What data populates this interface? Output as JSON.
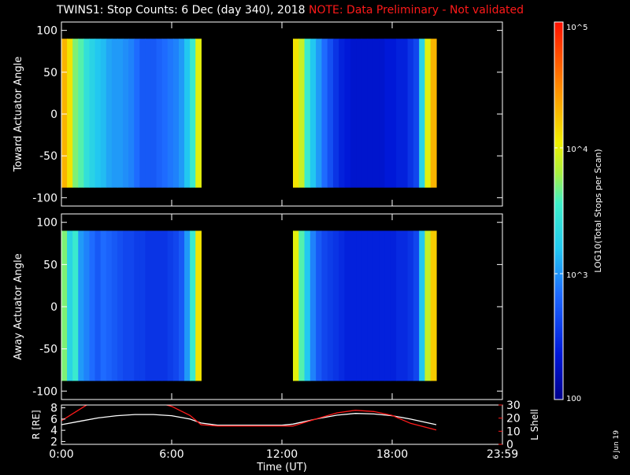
{
  "header": {
    "title": "TWINS1: Stop Counts:  6 Dec (day 340), 2018",
    "note": "NOTE: Data Preliminary - Not validated"
  },
  "footer": {
    "date_stamp": "6 Jun 19"
  },
  "colors": {
    "background": "#000000",
    "axes": "#ffffff",
    "lshell": "#ff1a1a"
  },
  "chart_data": [
    {
      "type": "heatmap",
      "ylabel": "Toward Actuator Angle",
      "ylim": [
        -110,
        110
      ],
      "yticks": [
        100,
        50,
        0,
        -50,
        -100
      ],
      "x_unit": "hours UT",
      "xlim": [
        0,
        24
      ],
      "color_scale": "log10",
      "colorbar_range": [
        100,
        100000
      ],
      "segments": [
        {
          "x": [
            0.0,
            7.6
          ],
          "y": [
            -88,
            90
          ],
          "profile": [
            4.3,
            4.1,
            3.7,
            3.6,
            3.4,
            3.3,
            3.2,
            3.15,
            3.05,
            3.0,
            3.0,
            2.95,
            2.9,
            2.8,
            2.7,
            2.7,
            2.7,
            2.75,
            2.8,
            2.85,
            2.9,
            3.0,
            3.2,
            3.5,
            4.0
          ]
        },
        {
          "x": [
            12.6,
            20.4
          ],
          "y": [
            -88,
            90
          ],
          "profile": [
            4.1,
            3.9,
            3.5,
            3.2,
            3.0,
            2.8,
            2.65,
            2.5,
            2.4,
            2.35,
            2.3,
            2.3,
            2.3,
            2.3,
            2.3,
            2.3,
            2.35,
            2.35,
            2.4,
            2.4,
            2.5,
            2.6,
            3.3,
            4.0,
            4.3
          ]
        }
      ]
    },
    {
      "type": "heatmap",
      "ylabel": "Away Actuator Angle",
      "ylim": [
        -110,
        110
      ],
      "yticks": [
        100,
        50,
        0,
        -50,
        -100
      ],
      "x_unit": "hours UT",
      "xlim": [
        0,
        24
      ],
      "color_scale": "log10",
      "colorbar_range": [
        100,
        100000
      ],
      "segments": [
        {
          "x": [
            0.0,
            7.6
          ],
          "y": [
            -88,
            90
          ],
          "profile": [
            3.7,
            3.3,
            3.5,
            3.0,
            2.9,
            2.8,
            2.7,
            2.8,
            2.75,
            2.7,
            2.65,
            2.6,
            2.6,
            2.55,
            2.55,
            2.5,
            2.5,
            2.5,
            2.5,
            2.55,
            2.6,
            2.7,
            3.0,
            3.5,
            4.1
          ]
        },
        {
          "x": [
            12.6,
            20.4
          ],
          "y": [
            -88,
            90
          ],
          "profile": [
            4.0,
            3.6,
            3.2,
            2.9,
            2.7,
            2.6,
            2.55,
            2.5,
            2.45,
            2.4,
            2.4,
            2.4,
            2.4,
            2.4,
            2.4,
            2.4,
            2.4,
            2.4,
            2.45,
            2.45,
            2.5,
            2.6,
            3.2,
            3.9,
            4.2
          ]
        }
      ]
    },
    {
      "type": "line",
      "xlabel": "Time (UT)",
      "xticks": [
        "0:00",
        "6:00",
        "12:00",
        "18:00",
        "23:59"
      ],
      "xtick_values": [
        0,
        6,
        12,
        18,
        24
      ],
      "xlim": [
        0,
        24
      ],
      "left_axis": {
        "label": "R [RE]",
        "ylim": [
          1.5,
          8.5
        ],
        "ticks": [
          8,
          6,
          4,
          2
        ]
      },
      "right_axis": {
        "label": "L Shell",
        "ylim": [
          0,
          30
        ],
        "ticks": [
          30,
          20,
          10,
          0
        ]
      },
      "series": [
        {
          "name": "R",
          "axis": "left",
          "color": "#ffffff",
          "x": [
            0,
            1,
            2,
            3,
            4,
            5,
            6,
            7,
            7.6,
            8.5,
            10,
            12,
            12.6,
            14,
            15,
            16,
            17,
            18,
            19,
            20.4
          ],
          "y": [
            5.0,
            5.6,
            6.2,
            6.6,
            6.8,
            6.8,
            6.6,
            6.0,
            5.3,
            4.9,
            4.9,
            4.9,
            5.1,
            6.1,
            6.7,
            7.0,
            6.9,
            6.6,
            6.0,
            5.0
          ]
        },
        {
          "name": "L Shell",
          "axis": "right",
          "color": "#ff1a1a",
          "x": [
            0,
            0.8,
            1.6,
            5.2,
            6,
            7,
            7.6,
            8.5,
            10,
            12,
            12.6,
            14,
            15,
            16,
            17,
            18,
            19,
            20.4
          ],
          "y": [
            18,
            25,
            32,
            32,
            29,
            22,
            15,
            14,
            14,
            14,
            14,
            20,
            24,
            26,
            25,
            22,
            16,
            11
          ]
        }
      ]
    }
  ],
  "colorbar": {
    "label": "LOG10(Total Stops per Scan)",
    "ticks": [
      {
        "value": 100000,
        "label": "10^5"
      },
      {
        "value": 10000,
        "label": "10^4"
      },
      {
        "value": 1000,
        "label": "10^3"
      },
      {
        "value": 100,
        "label": "100"
      }
    ]
  }
}
